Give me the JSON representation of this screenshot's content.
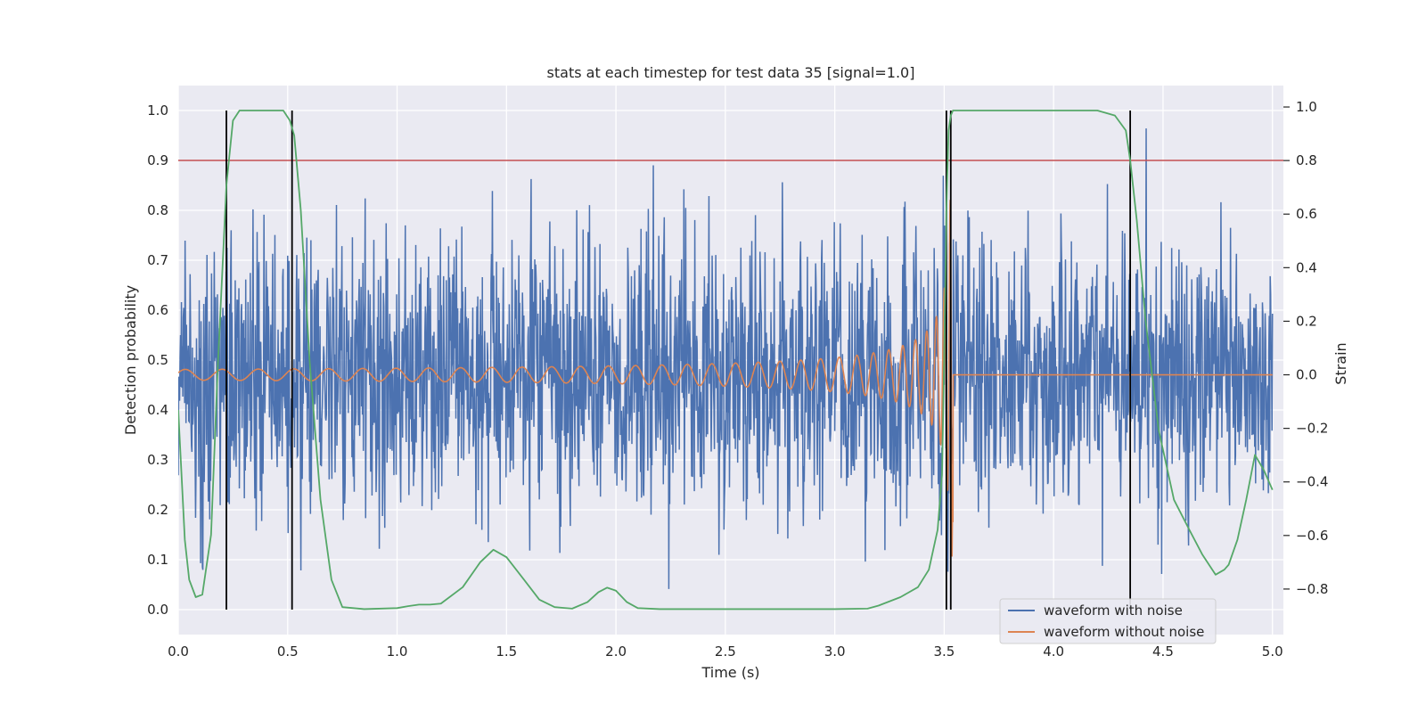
{
  "chart_data": {
    "type": "line",
    "title": "stats at each timestep for test data 35 [signal=1.0]",
    "xlabel": "Time (s)",
    "ylabel": "Detection probability",
    "ylabel_right": "Strain",
    "xlim": [
      0.0,
      5.05
    ],
    "ylim": [
      -0.05,
      1.05
    ],
    "ylim_right": [
      -0.97,
      1.08
    ],
    "xticks": [
      "0.0",
      "0.5",
      "1.0",
      "1.5",
      "2.0",
      "2.5",
      "3.0",
      "3.5",
      "4.0",
      "4.5",
      "5.0"
    ],
    "yticks": [
      "0.0",
      "0.1",
      "0.2",
      "0.3",
      "0.4",
      "0.5",
      "0.6",
      "0.7",
      "0.8",
      "0.9",
      "1.0"
    ],
    "yticks_right": [
      "−0.8",
      "−0.6",
      "−0.4",
      "−0.2",
      "0.0",
      "0.2",
      "0.4",
      "0.6",
      "0.8",
      "1.0"
    ],
    "threshold": {
      "value": 0.9,
      "color": "#c44e52"
    },
    "event_lines": {
      "x": [
        0.22,
        0.52,
        3.51,
        3.53,
        4.35
      ],
      "ymin": 0.0,
      "ymax": 1.0,
      "color": "#000000"
    },
    "detection_probability": {
      "color": "#55a868",
      "x": [
        0.0,
        0.03,
        0.05,
        0.08,
        0.11,
        0.15,
        0.18,
        0.22,
        0.25,
        0.28,
        0.33,
        0.4,
        0.45,
        0.48,
        0.51,
        0.53,
        0.56,
        0.6,
        0.65,
        0.7,
        0.75,
        0.85,
        1.0,
        1.05,
        1.1,
        1.15,
        1.2,
        1.3,
        1.38,
        1.44,
        1.5,
        1.58,
        1.65,
        1.72,
        1.8,
        1.87,
        1.92,
        1.96,
        2.0,
        2.05,
        2.1,
        2.2,
        2.4,
        2.7,
        3.0,
        3.15,
        3.2,
        3.3,
        3.38,
        3.43,
        3.47,
        3.49,
        3.5,
        3.51,
        3.52,
        3.53,
        3.54,
        3.56,
        3.6,
        4.2,
        4.28,
        4.33,
        4.35,
        4.38,
        4.42,
        4.48,
        4.55,
        4.62,
        4.68,
        4.74,
        4.78,
        4.8,
        4.84,
        4.88,
        4.92,
        4.96,
        5.0
      ],
      "y": [
        0.4,
        0.14,
        0.06,
        0.025,
        0.03,
        0.15,
        0.48,
        0.85,
        0.98,
        1.0,
        1.0,
        1.0,
        1.0,
        1.0,
        0.98,
        0.95,
        0.8,
        0.5,
        0.22,
        0.06,
        0.005,
        0.001,
        0.003,
        0.007,
        0.01,
        0.01,
        0.012,
        0.045,
        0.095,
        0.12,
        0.105,
        0.06,
        0.02,
        0.005,
        0.002,
        0.015,
        0.035,
        0.044,
        0.038,
        0.015,
        0.003,
        0.001,
        0.001,
        0.001,
        0.001,
        0.002,
        0.008,
        0.025,
        0.045,
        0.08,
        0.16,
        0.27,
        0.5,
        0.8,
        0.96,
        0.99,
        1.0,
        1.0,
        1.0,
        1.0,
        0.99,
        0.96,
        0.9,
        0.78,
        0.58,
        0.36,
        0.22,
        0.16,
        0.11,
        0.07,
        0.08,
        0.09,
        0.14,
        0.22,
        0.31,
        0.28,
        0.24
      ]
    },
    "series": [
      {
        "name": "waveform with noise",
        "color": "#4c72b0",
        "axis": "right",
        "samples": 2400,
        "noise_sigma": 0.24,
        "extreme_min": -0.8,
        "extreme_max": 0.92
      },
      {
        "name": "waveform without noise",
        "color": "#dd8452",
        "axis": "right",
        "model": "chirp",
        "t_start": 0.0,
        "t_merger": 3.54,
        "amplitude_start": 0.02,
        "amplitude_peak": 0.68,
        "frequency_start_hz": 15,
        "post_merger_value": 0.0
      }
    ],
    "legend": {
      "position": "lower-right",
      "entries": [
        "waveform with noise",
        "waveform without noise"
      ]
    }
  }
}
